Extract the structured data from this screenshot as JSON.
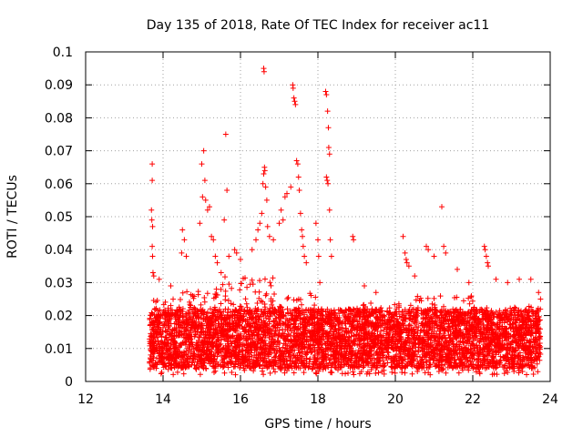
{
  "chart_data": {
    "type": "scatter",
    "title": "Day 135 of 2018, Rate Of TEC Index for receiver ac11",
    "xlabel": "GPS time / hours",
    "ylabel": "ROTI / TECUs",
    "xlim": [
      12,
      24
    ],
    "ylim": [
      0,
      0.1
    ],
    "x_ticks": [
      "12",
      "14",
      "16",
      "18",
      "20",
      "22",
      "24"
    ],
    "y_ticks": [
      "0",
      "0.01",
      "0.02",
      "0.03",
      "0.04",
      "0.05",
      "0.06",
      "0.07",
      "0.08",
      "0.09",
      "0.1"
    ],
    "grid": true,
    "marker": "+",
    "color": "#ff0000",
    "series": [
      {
        "name": "ROTI",
        "points": [
          [
            13.72,
            0.066
          ],
          [
            13.72,
            0.061
          ],
          [
            13.7,
            0.052
          ],
          [
            13.71,
            0.049
          ],
          [
            13.73,
            0.047
          ],
          [
            13.72,
            0.041
          ],
          [
            13.73,
            0.038
          ],
          [
            13.74,
            0.033
          ],
          [
            13.76,
            0.032
          ],
          [
            13.9,
            0.031
          ],
          [
            14.2,
            0.029
          ],
          [
            14.5,
            0.046
          ],
          [
            14.55,
            0.043
          ],
          [
            14.6,
            0.038
          ],
          [
            14.48,
            0.039
          ],
          [
            14.95,
            0.048
          ],
          [
            15.0,
            0.066
          ],
          [
            15.05,
            0.07
          ],
          [
            15.08,
            0.061
          ],
          [
            15.02,
            0.056
          ],
          [
            15.1,
            0.055
          ],
          [
            15.15,
            0.052
          ],
          [
            15.2,
            0.053
          ],
          [
            15.25,
            0.044
          ],
          [
            15.3,
            0.043
          ],
          [
            15.35,
            0.038
          ],
          [
            15.4,
            0.036
          ],
          [
            15.62,
            0.075
          ],
          [
            15.65,
            0.058
          ],
          [
            15.58,
            0.049
          ],
          [
            15.5,
            0.033
          ],
          [
            15.7,
            0.038
          ],
          [
            15.85,
            0.04
          ],
          [
            15.9,
            0.039
          ],
          [
            16.0,
            0.037
          ],
          [
            16.3,
            0.04
          ],
          [
            16.4,
            0.043
          ],
          [
            16.45,
            0.046
          ],
          [
            16.5,
            0.048
          ],
          [
            16.55,
            0.051
          ],
          [
            16.6,
            0.095
          ],
          [
            16.61,
            0.094
          ],
          [
            16.62,
            0.065
          ],
          [
            16.63,
            0.064
          ],
          [
            16.6,
            0.063
          ],
          [
            16.58,
            0.06
          ],
          [
            16.65,
            0.059
          ],
          [
            16.68,
            0.055
          ],
          [
            16.7,
            0.047
          ],
          [
            16.75,
            0.044
          ],
          [
            16.85,
            0.043
          ],
          [
            17.0,
            0.048
          ],
          [
            17.05,
            0.052
          ],
          [
            17.1,
            0.049
          ],
          [
            17.15,
            0.056
          ],
          [
            17.2,
            0.057
          ],
          [
            17.3,
            0.059
          ],
          [
            17.35,
            0.09
          ],
          [
            17.36,
            0.089
          ],
          [
            17.38,
            0.086
          ],
          [
            17.4,
            0.085
          ],
          [
            17.42,
            0.084
          ],
          [
            17.45,
            0.067
          ],
          [
            17.48,
            0.066
          ],
          [
            17.5,
            0.062
          ],
          [
            17.52,
            0.058
          ],
          [
            17.55,
            0.051
          ],
          [
            17.58,
            0.046
          ],
          [
            17.6,
            0.044
          ],
          [
            17.62,
            0.041
          ],
          [
            17.65,
            0.038
          ],
          [
            17.7,
            0.036
          ],
          [
            17.95,
            0.048
          ],
          [
            18.0,
            0.043
          ],
          [
            18.02,
            0.038
          ],
          [
            18.05,
            0.03
          ],
          [
            18.2,
            0.088
          ],
          [
            18.22,
            0.087
          ],
          [
            18.25,
            0.082
          ],
          [
            18.27,
            0.077
          ],
          [
            18.28,
            0.071
          ],
          [
            18.3,
            0.069
          ],
          [
            18.22,
            0.062
          ],
          [
            18.24,
            0.061
          ],
          [
            18.26,
            0.06
          ],
          [
            18.3,
            0.052
          ],
          [
            18.32,
            0.043
          ],
          [
            18.35,
            0.038
          ],
          [
            18.9,
            0.044
          ],
          [
            18.92,
            0.043
          ],
          [
            19.2,
            0.029
          ],
          [
            19.5,
            0.027
          ],
          [
            20.2,
            0.044
          ],
          [
            20.25,
            0.039
          ],
          [
            20.28,
            0.037
          ],
          [
            20.3,
            0.036
          ],
          [
            20.35,
            0.035
          ],
          [
            20.5,
            0.032
          ],
          [
            20.8,
            0.041
          ],
          [
            20.85,
            0.04
          ],
          [
            21.0,
            0.038
          ],
          [
            21.2,
            0.053
          ],
          [
            21.25,
            0.041
          ],
          [
            21.3,
            0.039
          ],
          [
            21.6,
            0.034
          ],
          [
            21.9,
            0.03
          ],
          [
            22.3,
            0.041
          ],
          [
            22.32,
            0.04
          ],
          [
            22.35,
            0.038
          ],
          [
            22.38,
            0.036
          ],
          [
            22.4,
            0.035
          ],
          [
            22.6,
            0.031
          ],
          [
            22.9,
            0.03
          ],
          [
            23.2,
            0.031
          ],
          [
            23.5,
            0.031
          ],
          [
            23.7,
            0.027
          ],
          [
            23.75,
            0.025
          ]
        ]
      }
    ],
    "dense_band": {
      "x_range": [
        13.65,
        23.75
      ],
      "y_typical_range": [
        0.004,
        0.022
      ],
      "y_min": 0.002,
      "segments": [
        {
          "x": [
            13.65,
            14.5
          ],
          "y_upper": 0.025
        },
        {
          "x": [
            14.5,
            15.5
          ],
          "y_upper": 0.028
        },
        {
          "x": [
            15.5,
            17.0
          ],
          "y_upper": 0.032
        },
        {
          "x": [
            17.0,
            18.0
          ],
          "y_upper": 0.027
        },
        {
          "x": [
            18.0,
            19.0
          ],
          "y_upper": 0.022
        },
        {
          "x": [
            19.0,
            20.5
          ],
          "y_upper": 0.024
        },
        {
          "x": [
            20.5,
            22.0
          ],
          "y_upper": 0.026
        },
        {
          "x": [
            22.0,
            23.75
          ],
          "y_upper": 0.023
        }
      ]
    }
  }
}
